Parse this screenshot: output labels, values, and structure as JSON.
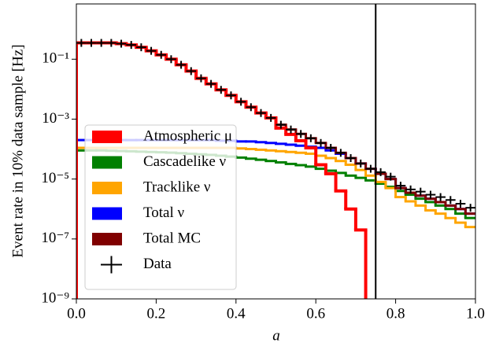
{
  "chart_data": {
    "type": "step-histogram",
    "xlabel": "a",
    "ylabel": "Event rate in 10% data sample [Hz]",
    "bins": [
      0,
      0.025,
      0.05,
      0.075,
      0.1,
      0.125,
      0.15,
      0.175,
      0.2,
      0.225,
      0.25,
      0.275,
      0.3,
      0.325,
      0.35,
      0.375,
      0.4,
      0.425,
      0.45,
      0.475,
      0.5,
      0.525,
      0.55,
      0.575,
      0.6,
      0.625,
      0.65,
      0.675,
      0.7,
      0.725,
      0.75,
      0.775,
      0.8,
      0.825,
      0.85,
      0.875,
      0.9,
      0.925,
      0.95,
      0.975,
      1
    ],
    "series": [
      {
        "name": "Atmospheric μ",
        "color": "#ff0000",
        "values": [
          0.35,
          0.35,
          0.35,
          0.35,
          0.33,
          0.3,
          0.25,
          0.19,
          0.14,
          0.1,
          0.065,
          0.04,
          0.023,
          0.015,
          0.0095,
          0.0062,
          0.0038,
          0.0025,
          0.0016,
          0.0011,
          0.0005,
          0.00031,
          0.00019,
          0.00011,
          3e-05,
          1.5e-05,
          4e-06,
          1e-06,
          2e-07,
          null,
          null,
          null,
          null,
          null,
          null,
          null,
          null,
          null,
          null,
          null
        ]
      },
      {
        "name": "Cascadelike ν",
        "color": "#008000",
        "values": [
          9e-05,
          9e-05,
          9e-05,
          8.8e-05,
          8.6e-05,
          8.4e-05,
          8.2e-05,
          8e-05,
          7.8e-05,
          7.6e-05,
          7.3e-05,
          7e-05,
          6.7e-05,
          6.4e-05,
          6e-05,
          5.6e-05,
          5.2e-05,
          4.8e-05,
          4.4e-05,
          4e-05,
          3.6e-05,
          3.2e-05,
          2.9e-05,
          2.6e-05,
          2.2e-05,
          1.9e-05,
          1.6e-05,
          1.3e-05,
          1.1e-05,
          9e-06,
          7e-06,
          5.5e-06,
          4e-06,
          3e-06,
          2.2e-06,
          1.7e-06,
          1.3e-06,
          1e-06,
          7e-07,
          5e-07
        ]
      },
      {
        "name": "Tracklike ν",
        "color": "#ffa500",
        "values": [
          0.00011,
          0.00011,
          0.00011,
          0.00011,
          0.00011,
          0.00011,
          0.00011,
          0.00011,
          0.00011,
          0.00011,
          0.00011,
          0.00011,
          0.00011,
          0.00011,
          0.00011,
          0.00011,
          0.000105,
          0.0001,
          9.5e-05,
          9e-05,
          8.5e-05,
          8e-05,
          7.5e-05,
          7e-05,
          6e-05,
          5e-05,
          4e-05,
          3e-05,
          2e-05,
          1.3e-05,
          8e-06,
          5e-06,
          2.5e-06,
          1.8e-06,
          1.3e-06,
          9e-07,
          7e-07,
          5e-07,
          3.5e-07,
          2.5e-07
        ]
      },
      {
        "name": "Total ν",
        "color": "#0000ff",
        "values": [
          0.0002,
          0.0002,
          0.0002,
          0.0002,
          0.0002,
          0.0002,
          0.0002,
          0.0002,
          0.0002,
          0.0002,
          0.0002,
          0.0002,
          0.0002,
          0.0002,
          0.00019,
          0.00019,
          0.00018,
          0.00018,
          0.00017,
          0.00016,
          0.00015,
          0.00014,
          0.00013,
          0.00012,
          0.00011,
          9e-05,
          7e-05,
          5e-05,
          3.3e-05,
          2.2e-05,
          1.5e-05,
          1e-05,
          5e-06,
          3.5e-06,
          2.8e-06,
          2.2e-06,
          1.7e-06,
          1.3e-06,
          1e-06,
          7e-07
        ]
      },
      {
        "name": "Total MC",
        "color": "#800000",
        "values": [
          0.35,
          0.35,
          0.35,
          0.35,
          0.33,
          0.3,
          0.25,
          0.19,
          0.14,
          0.1,
          0.065,
          0.04,
          0.023,
          0.015,
          0.0095,
          0.0062,
          0.0038,
          0.0025,
          0.0016,
          0.0011,
          0.00065,
          0.00045,
          0.00032,
          0.00023,
          0.00016,
          0.00011,
          7.5e-05,
          5e-05,
          3.3e-05,
          2.2e-05,
          1.5e-05,
          1e-05,
          5e-06,
          3.5e-06,
          2.8e-06,
          2.2e-06,
          1.7e-06,
          1.3e-06,
          1e-06,
          7e-07
        ]
      },
      {
        "name": "Data",
        "color": "#000000",
        "marker": "+",
        "values": [
          0.35,
          0.35,
          0.35,
          0.35,
          0.33,
          0.3,
          0.25,
          0.19,
          0.14,
          0.1,
          0.065,
          0.04,
          0.023,
          0.015,
          0.0095,
          0.0062,
          0.0038,
          0.0025,
          0.0016,
          0.0011,
          0.00065,
          0.00045,
          0.00032,
          0.00023,
          0.00016,
          0.00011,
          7.5e-05,
          5e-05,
          3.3e-05,
          2.2e-05,
          1.7e-05,
          1.2e-05,
          6e-06,
          4.5e-06,
          3.8e-06,
          3e-06,
          2.5e-06,
          2e-06,
          1.5e-06,
          1.1e-06
        ]
      }
    ],
    "vline": 0.75,
    "xlim": [
      0,
      1
    ],
    "xticks": [
      {
        "value": 0,
        "label": "0.0"
      },
      0.2,
      0.4,
      0.6,
      0.8,
      {
        "value": 1,
        "label": "1.0"
      }
    ],
    "ylim": [
      1e-09,
      7
    ],
    "yscale": "log",
    "yticks": [
      {
        "value": 1e-09,
        "label": "10⁻⁹"
      },
      {
        "value": 1e-07,
        "label": "10⁻⁷"
      },
      {
        "value": 1e-05,
        "label": "10⁻⁵"
      },
      {
        "value": 0.001,
        "label": "10⁻³"
      },
      {
        "value": 0.1,
        "label": "10⁻¹"
      }
    ],
    "legend": "lower left"
  }
}
